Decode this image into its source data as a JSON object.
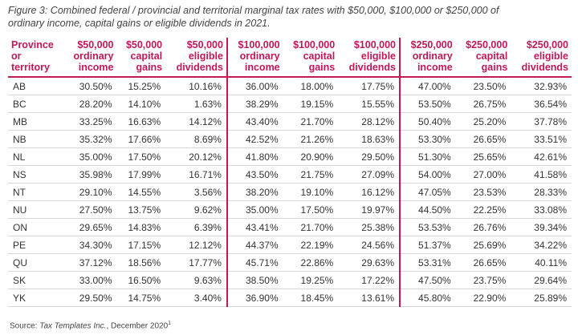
{
  "caption": [
    "Figure 3: Combined federal / provincial and territorial marginal tax rates with $50,000, $100,000 or $250,000 of",
    "ordinary income, capital gains or eligible dividends in 2021."
  ],
  "table": {
    "columns": [
      [
        "Province",
        "or",
        "territory"
      ],
      [
        "$50,000",
        "ordinary",
        "income"
      ],
      [
        "$50,000",
        "capital",
        "gains"
      ],
      [
        "$50,000",
        "eligible",
        "dividends"
      ],
      [
        "$100,000",
        "ordinary",
        "income"
      ],
      [
        "$100,000",
        "capital",
        "gains"
      ],
      [
        "$100,000",
        "eligible",
        "dividends"
      ],
      [
        "$250,000",
        "ordinary",
        "income"
      ],
      [
        "$250,000",
        "capital",
        "gains"
      ],
      [
        "$250,000",
        "eligible",
        "dividends"
      ]
    ],
    "rows": [
      [
        "AB",
        "30.50%",
        "15.25%",
        "10.16%",
        "36.00%",
        "18.00%",
        "17.75%",
        "47.00%",
        "23.50%",
        "32.93%"
      ],
      [
        "BC",
        "28.20%",
        "14.10%",
        "1.63%",
        "38.29%",
        "19.15%",
        "15.55%",
        "53.50%",
        "26.75%",
        "36.54%"
      ],
      [
        "MB",
        "33.25%",
        "16.63%",
        "14.12%",
        "43.40%",
        "21.70%",
        "28.12%",
        "50.40%",
        "25.20%",
        "37.78%"
      ],
      [
        "NB",
        "35.32%",
        "17.66%",
        "8.69%",
        "42.52%",
        "21.26%",
        "18.63%",
        "53.30%",
        "26.65%",
        "33.51%"
      ],
      [
        "NL",
        "35.00%",
        "17.50%",
        "20.12%",
        "41.80%",
        "20.90%",
        "29.50%",
        "51.30%",
        "25.65%",
        "42.61%"
      ],
      [
        "NS",
        "35.98%",
        "17.99%",
        "16.71%",
        "43.50%",
        "21.75%",
        "27.09%",
        "54.00%",
        "27.00%",
        "41.58%"
      ],
      [
        "NT",
        "29.10%",
        "14.55%",
        "3.56%",
        "38.20%",
        "19.10%",
        "16.12%",
        "47.05%",
        "23.53%",
        "28.33%"
      ],
      [
        "NU",
        "27.50%",
        "13.75%",
        "9.62%",
        "35.00%",
        "17.50%",
        "19.97%",
        "44.50%",
        "22.25%",
        "33.08%"
      ],
      [
        "ON",
        "29.65%",
        "14.83%",
        "6.39%",
        "43.41%",
        "21.70%",
        "25.38%",
        "53.53%",
        "26.76%",
        "39.34%"
      ],
      [
        "PE",
        "34.30%",
        "17.15%",
        "12.12%",
        "44.37%",
        "22.19%",
        "24.56%",
        "51.37%",
        "25.69%",
        "34.22%"
      ],
      [
        "QU",
        "37.12%",
        "18.56%",
        "17.77%",
        "45.71%",
        "22.86%",
        "29.63%",
        "53.31%",
        "26.65%",
        "40.11%"
      ],
      [
        "SK",
        "33.00%",
        "16.50%",
        "9.63%",
        "38.50%",
        "19.25%",
        "17.22%",
        "47.50%",
        "23.75%",
        "29.64%"
      ],
      [
        "YK",
        "29.50%",
        "14.75%",
        "3.40%",
        "36.90%",
        "18.45%",
        "13.61%",
        "45.80%",
        "22.90%",
        "25.89%"
      ]
    ]
  },
  "source": {
    "prefix": "Source:",
    "publisher": "Tax Templates Inc.",
    "date": ", December 2020",
    "note": "1"
  }
}
